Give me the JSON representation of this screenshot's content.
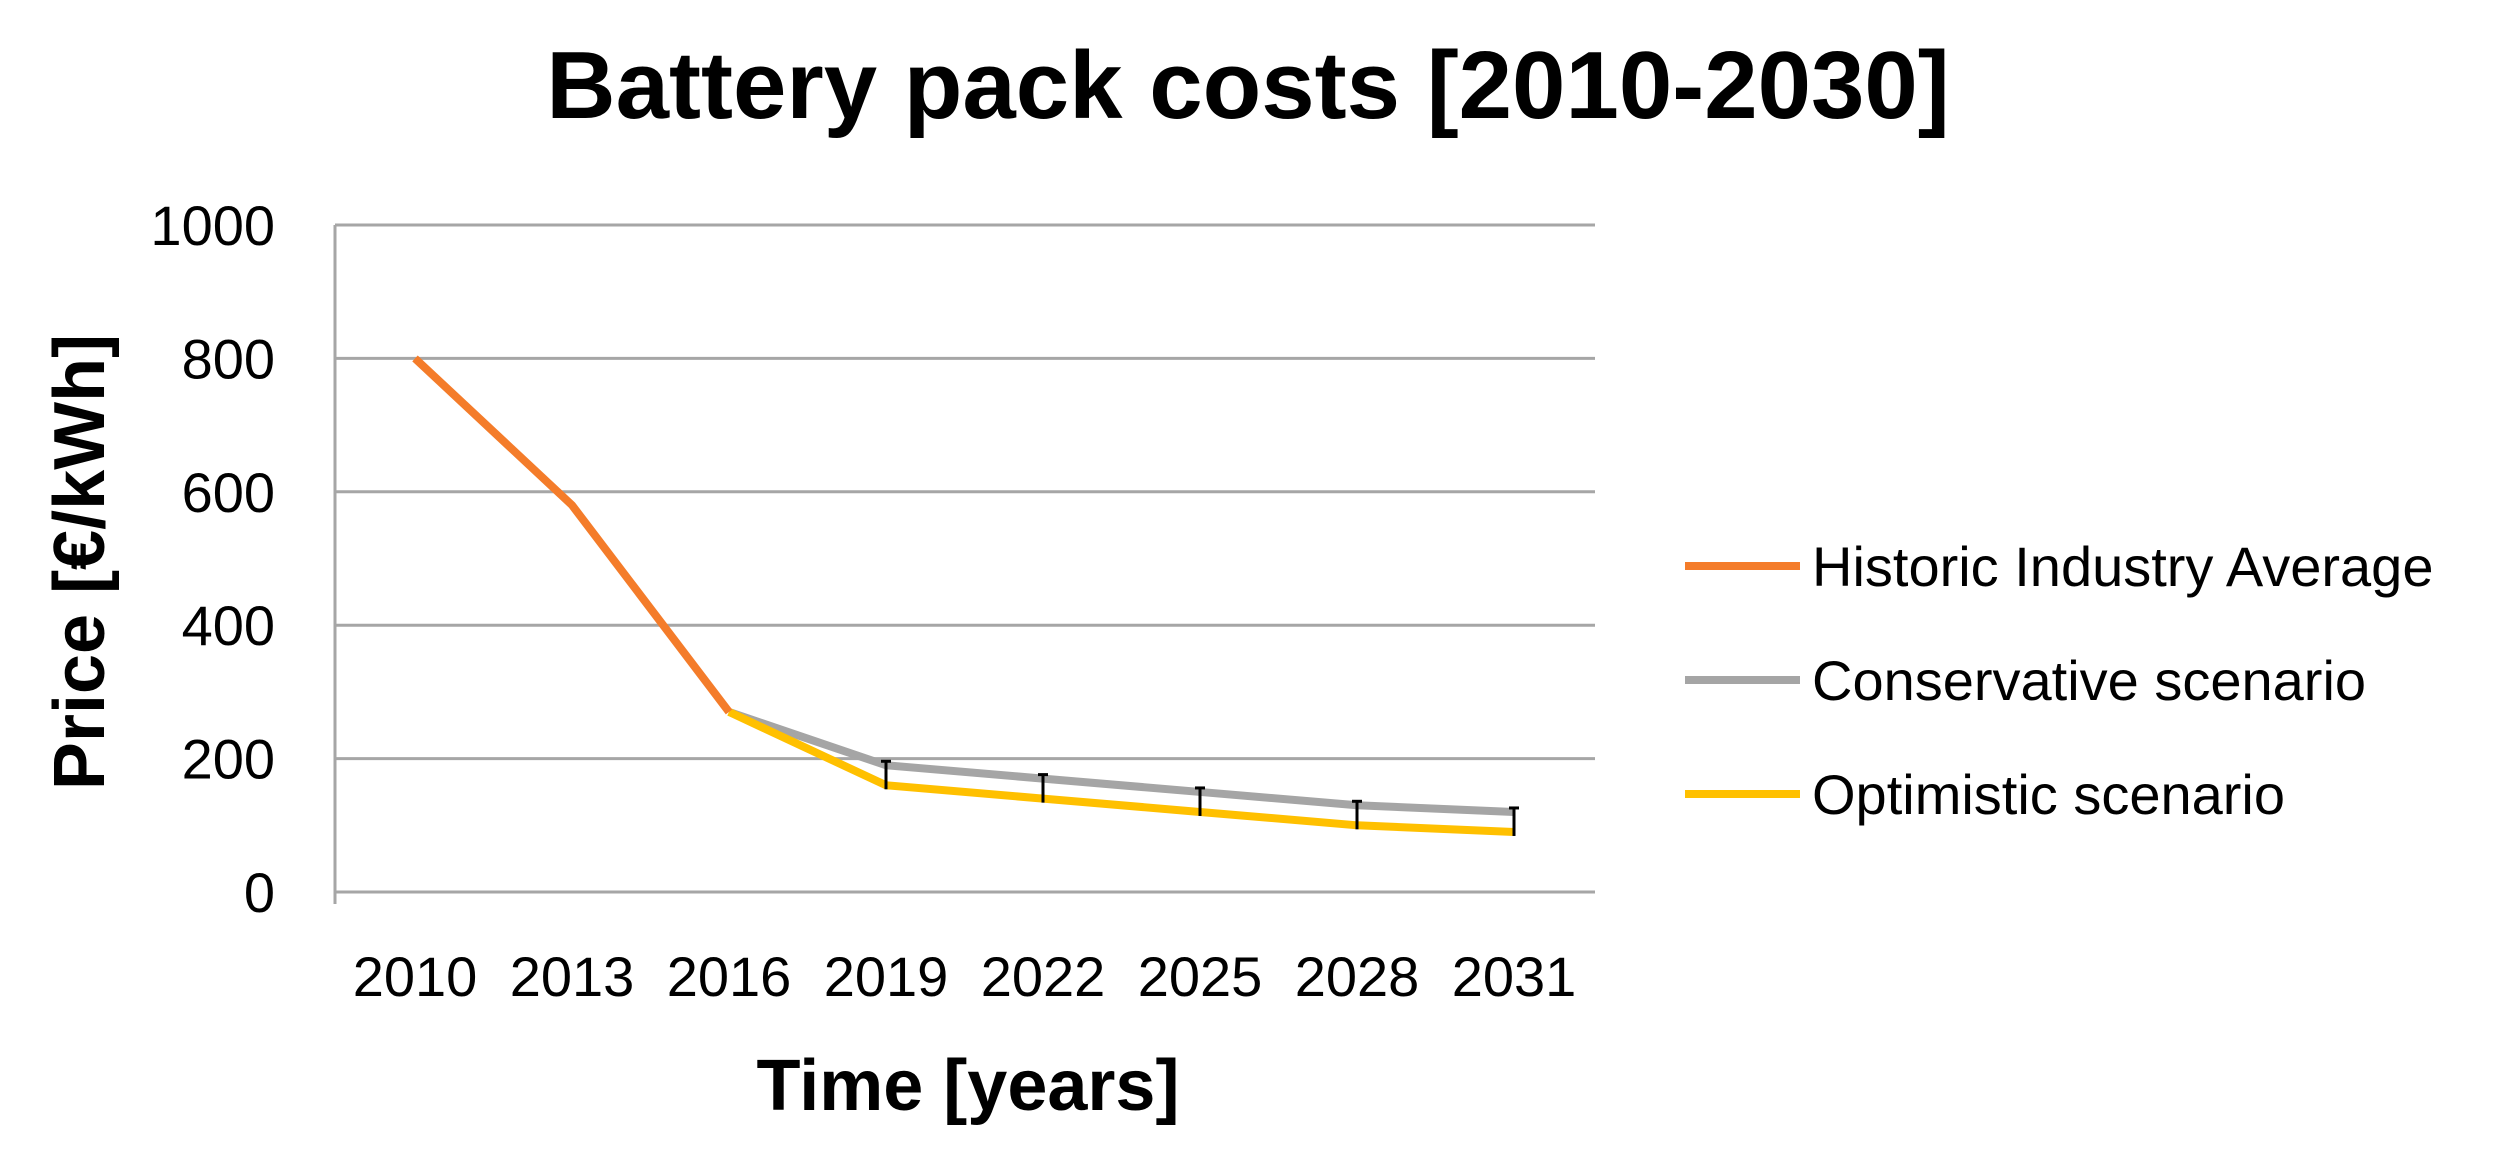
{
  "chart_data": {
    "type": "line",
    "title": "Battery pack costs [2010-2030]",
    "xlabel": "Time [years]",
    "ylabel": "Price [€/kWh]",
    "categories": [
      "2010",
      "2013",
      "2016",
      "2019",
      "2022",
      "2025",
      "2028",
      "2031"
    ],
    "ylim": [
      0,
      1000
    ],
    "yticks": [
      0,
      200,
      400,
      600,
      800,
      1000
    ],
    "grid": true,
    "legend_position": "right",
    "series": [
      {
        "name": "Historic Industry Average",
        "color": "#f47c2a",
        "values": [
          800,
          580,
          270,
          null,
          null,
          null,
          null,
          null
        ]
      },
      {
        "name": "Conservative scenario",
        "color": "#a5a5a5",
        "values": [
          null,
          null,
          270,
          190,
          170,
          150,
          130,
          120
        ]
      },
      {
        "name": "Optimistic scenario",
        "color": "#ffc000",
        "values": [
          null,
          null,
          270,
          160,
          140,
          120,
          100,
          90
        ]
      }
    ],
    "error_bars": {
      "description": "range between conservative and optimistic",
      "lower": [
        null,
        null,
        null,
        160,
        140,
        120,
        100,
        90
      ],
      "upper": [
        null,
        null,
        null,
        190,
        170,
        150,
        130,
        120
      ]
    }
  }
}
